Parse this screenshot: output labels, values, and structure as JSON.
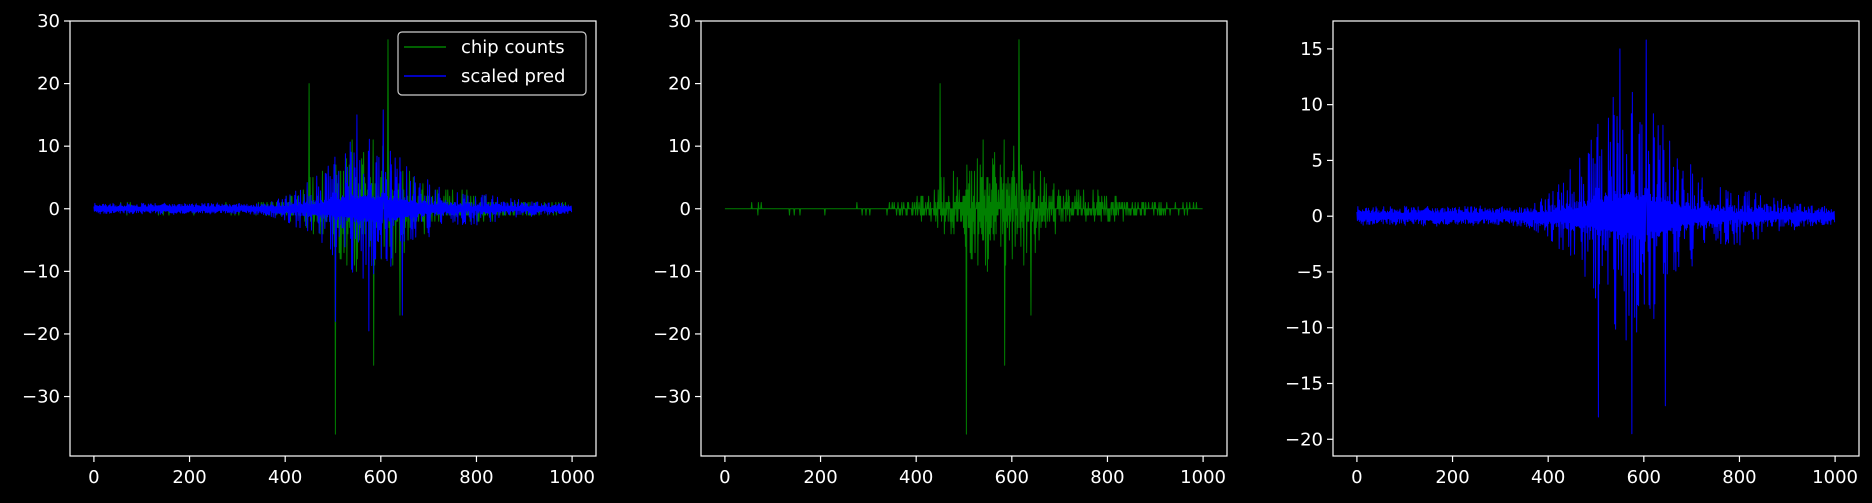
{
  "figure": {
    "background": "#000000",
    "foreground": "#ffffff"
  },
  "chart_data": [
    {
      "type": "line",
      "title": "",
      "xlabel": "",
      "ylabel": "",
      "xlim": [
        -50,
        1050
      ],
      "ylim": [
        -39.5,
        30
      ],
      "xticks": [
        0,
        200,
        400,
        600,
        800,
        1000
      ],
      "yticks": [
        -30,
        -20,
        -10,
        0,
        10,
        20,
        30
      ],
      "grid": false,
      "legend": {
        "placement": "top-right",
        "entries": [
          "chip counts",
          "scaled pred"
        ]
      },
      "series": [
        {
          "name": "chip counts",
          "color": "#008000",
          "source": "chip_counts",
          "n_points": 1000
        },
        {
          "name": "scaled pred",
          "color": "#0000ff",
          "source": "scaled_pred",
          "n_points": 1000
        }
      ]
    },
    {
      "type": "line",
      "title": "",
      "xlabel": "",
      "ylabel": "",
      "xlim": [
        -50,
        1050
      ],
      "ylim": [
        -39.5,
        30
      ],
      "xticks": [
        0,
        200,
        400,
        600,
        800,
        1000
      ],
      "yticks": [
        -30,
        -20,
        -10,
        0,
        10,
        20,
        30
      ],
      "grid": false,
      "series": [
        {
          "color": "#008000",
          "source": "chip_counts",
          "n_points": 1000
        }
      ]
    },
    {
      "type": "line",
      "title": "",
      "xlabel": "",
      "ylabel": "",
      "xlim": [
        -50,
        1050
      ],
      "ylim": [
        -21.5,
        17.5
      ],
      "xticks": [
        0,
        200,
        400,
        600,
        800,
        1000
      ],
      "yticks": [
        -20,
        -15,
        -10,
        -5,
        0,
        5,
        10,
        15
      ],
      "grid": false,
      "series": [
        {
          "color": "#0000ff",
          "source": "scaled_pred",
          "n_points": 1000
        }
      ]
    }
  ],
  "signals": {
    "chip_counts": {
      "description_of_shape": "integer-valued counts alternating in sign, small near both ends and large near x=400-700",
      "peak_points": [
        {
          "x": 450,
          "y": 20
        },
        {
          "x": 505,
          "y": -36
        },
        {
          "x": 585,
          "y": -25
        },
        {
          "x": 615,
          "y": 27
        },
        {
          "x": 640,
          "y": -17
        }
      ]
    },
    "scaled_pred": {
      "description_of_shape": "two bands mirrored around zero, amplitude peaking near x=500-650",
      "peak_points": [
        {
          "x": 505,
          "y": -18
        },
        {
          "x": 550,
          "y": 15
        },
        {
          "x": 575,
          "y": -19.5
        },
        {
          "x": 605,
          "y": 15.8
        },
        {
          "x": 645,
          "y": -17
        }
      ]
    }
  }
}
